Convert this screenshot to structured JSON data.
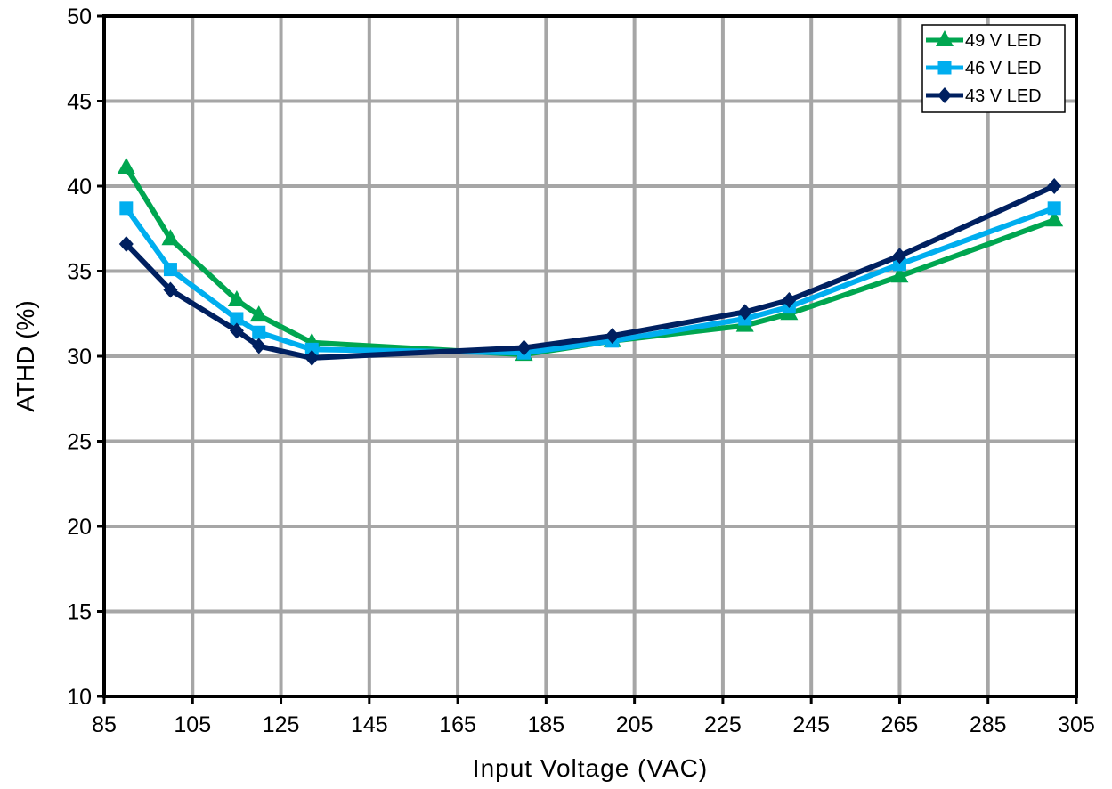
{
  "chart_data": {
    "type": "line",
    "title": "",
    "xlabel": "Input Voltage (VAC)",
    "ylabel": "ATHD (%)",
    "xlim": [
      85,
      305
    ],
    "ylim": [
      10,
      50
    ],
    "x_ticks": [
      85,
      105,
      125,
      145,
      165,
      185,
      205,
      225,
      245,
      265,
      285,
      305
    ],
    "y_ticks": [
      10,
      15,
      20,
      25,
      30,
      35,
      40,
      45,
      50
    ],
    "grid": true,
    "legend_position": "top-right",
    "series": [
      {
        "name": "49 V LED",
        "color": "#00a650",
        "marker": "triangle",
        "x": [
          90,
          100,
          115,
          120,
          132,
          180,
          200,
          230,
          240,
          265,
          300
        ],
        "y": [
          41.1,
          36.9,
          33.3,
          32.4,
          30.8,
          30.1,
          30.9,
          31.8,
          32.5,
          34.7,
          38.0
        ]
      },
      {
        "name": "46 V LED",
        "color": "#00aeef",
        "marker": "square",
        "x": [
          90,
          100,
          115,
          120,
          132,
          180,
          200,
          230,
          240,
          265,
          300
        ],
        "y": [
          38.7,
          35.1,
          32.2,
          31.4,
          30.4,
          30.2,
          30.9,
          32.2,
          32.9,
          35.4,
          38.7
        ]
      },
      {
        "name": "43 V LED",
        "color": "#002060",
        "marker": "diamond",
        "x": [
          90,
          100,
          115,
          120,
          132,
          180,
          200,
          230,
          240,
          265,
          300
        ],
        "y": [
          36.6,
          33.9,
          31.5,
          30.6,
          29.9,
          30.5,
          31.2,
          32.6,
          33.3,
          35.9,
          40.0
        ]
      }
    ]
  }
}
